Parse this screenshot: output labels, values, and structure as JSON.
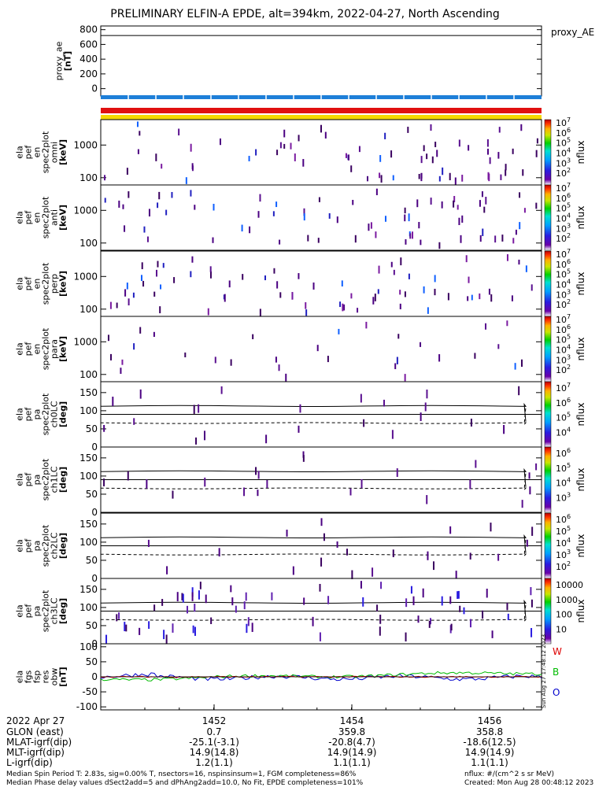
{
  "title": "PRELIMINARY ELFIN-A EPDE, alt=394km, 2022-04-27, North Ascending",
  "proxy_panel": {
    "label_lines": [
      "proxy_ae",
      "[nT]"
    ],
    "right_label": "proxy_AE",
    "ticks": [
      "800",
      "600",
      "400",
      "200",
      "0"
    ]
  },
  "spectrogram_panels": [
    {
      "label_lines": [
        "ela",
        "pef",
        "en",
        "spec2plot",
        "omni",
        "[keV]"
      ],
      "ticks": [
        "1000",
        "100"
      ],
      "cb_ticks": [
        "10^7",
        "10^6",
        "10^5",
        "10^4",
        "10^3",
        "10^2"
      ],
      "cb_label": "nflux"
    },
    {
      "label_lines": [
        "ela",
        "pef",
        "en",
        "spec2plot",
        "anti",
        "[keV]"
      ],
      "ticks": [
        "1000",
        "100"
      ],
      "cb_ticks": [
        "10^7",
        "10^6",
        "10^5",
        "10^4",
        "10^3",
        "10^2"
      ],
      "cb_label": "nflux"
    },
    {
      "label_lines": [
        "ela",
        "pef",
        "en",
        "spec2plot",
        "perp",
        "[keV]"
      ],
      "ticks": [
        "1000",
        "100"
      ],
      "cb_ticks": [
        "10^7",
        "10^6",
        "10^5",
        "10^4",
        "10^3",
        "10^2"
      ],
      "cb_label": "nflux"
    },
    {
      "label_lines": [
        "ela",
        "pef",
        "en",
        "spec2plot",
        "para",
        "[keV]"
      ],
      "ticks": [
        "1000",
        "100"
      ],
      "cb_ticks": [
        "10^7",
        "10^6",
        "10^5",
        "10^4",
        "10^3",
        "10^2"
      ],
      "cb_label": "nflux"
    }
  ],
  "pa_panels": [
    {
      "label_lines": [
        "ela",
        "pef",
        "pa",
        "spec2plot",
        "ch0LC",
        "[deg]"
      ],
      "ticks": [
        "150",
        "100",
        "50",
        "0"
      ],
      "cb_ticks": [
        "10^7",
        "10^6",
        "10^5",
        "10^4"
      ],
      "cb_label": "nflux"
    },
    {
      "label_lines": [
        "ela",
        "pef",
        "pa",
        "spec2plot",
        "ch1LC",
        "[deg]"
      ],
      "ticks": [
        "150",
        "100",
        "50",
        "0"
      ],
      "cb_ticks": [
        "10^6",
        "10^5",
        "10^4",
        "10^3"
      ],
      "cb_label": "nflux"
    },
    {
      "label_lines": [
        "ela",
        "pef",
        "pa",
        "spec2plot",
        "ch2LC",
        "[deg]"
      ],
      "ticks": [
        "150",
        "100",
        "50",
        "0"
      ],
      "cb_ticks": [
        "10^6",
        "10^5",
        "10^4",
        "10^3",
        "10^2"
      ],
      "cb_label": "nflux"
    },
    {
      "label_lines": [
        "ela",
        "pef",
        "pa",
        "spec2plot",
        "ch3LC",
        "[deg]"
      ],
      "ticks": [
        "150",
        "100",
        "50",
        "0"
      ],
      "cb_ticks": [
        "10000",
        "1000",
        "100",
        "10"
      ],
      "cb_label": "nflux"
    }
  ],
  "field_panel": {
    "label_lines": [
      "ela",
      "fgs",
      "fsp",
      "res",
      "obw",
      "[nT]"
    ],
    "ticks": [
      "100",
      "50",
      "0",
      "-50",
      "-100"
    ],
    "legend": [
      {
        "label": "W",
        "color": "#dd0000"
      },
      {
        "label": "B",
        "color": "#00bb00"
      },
      {
        "label": "O",
        "color": "#0000cc"
      }
    ],
    "side_text": "Sun Aug 27 17:48:12 2023"
  },
  "time_axis": {
    "date_label": "2022 Apr 27",
    "ticks": [
      "1452",
      "1454",
      "1456"
    ]
  },
  "ephemeris": [
    {
      "name": "GLON (east)",
      "values": [
        "0.7",
        "359.8",
        "358.8"
      ]
    },
    {
      "name": "MLAT-igrf(dip)",
      "values": [
        "-25.1(-3.1)",
        "-20.8(4.7)",
        "-18.6(12.5)"
      ]
    },
    {
      "name": "MLT-igrf(dip)",
      "values": [
        "14.9(14.8)",
        "14.9(14.9)",
        "14.9(14.9)"
      ]
    },
    {
      "name": "L-igrf(dip)",
      "values": [
        "1.2(1.1)",
        "1.1(1.1)",
        "1.1(1.1)"
      ]
    }
  ],
  "footer": {
    "line1_left": "Median Spin Period T: 2.83s, sig=0.00% T, nsectors=16, nspinsinsum=1, FGM completeness=86%",
    "line2_left": "Median Phase delay values dSect2add=5 and dPhAng2add=10.0, No Fit, EPDE completeness=101%",
    "line1_right": "nflux: #/(cm^2 s sr MeV)",
    "line2_right": "Created: Mon Aug 28 00:48:12 2023"
  },
  "colors": {
    "orbit_bar_blue": "#1e7fd8",
    "orbit_bar_red": "#e01010",
    "orbit_bar_yellow": "#f5d800",
    "trace_W": "#dd0000",
    "trace_B": "#00bb00",
    "trace_O": "#0000cc"
  },
  "chart_data": {
    "type": "heatmap",
    "time_range_minutes": [
      1450.3,
      1456.8
    ],
    "proxy_ae": {
      "ylim": [
        -100,
        850
      ],
      "x": [
        1450.3,
        1456.8
      ],
      "y": [
        720,
        720
      ]
    },
    "spectrogram_ylim_keV": [
      60,
      6000
    ],
    "pa_ylim_deg": [
      0,
      180
    ],
    "field_ylim_nT": [
      -110,
      110
    ]
  }
}
